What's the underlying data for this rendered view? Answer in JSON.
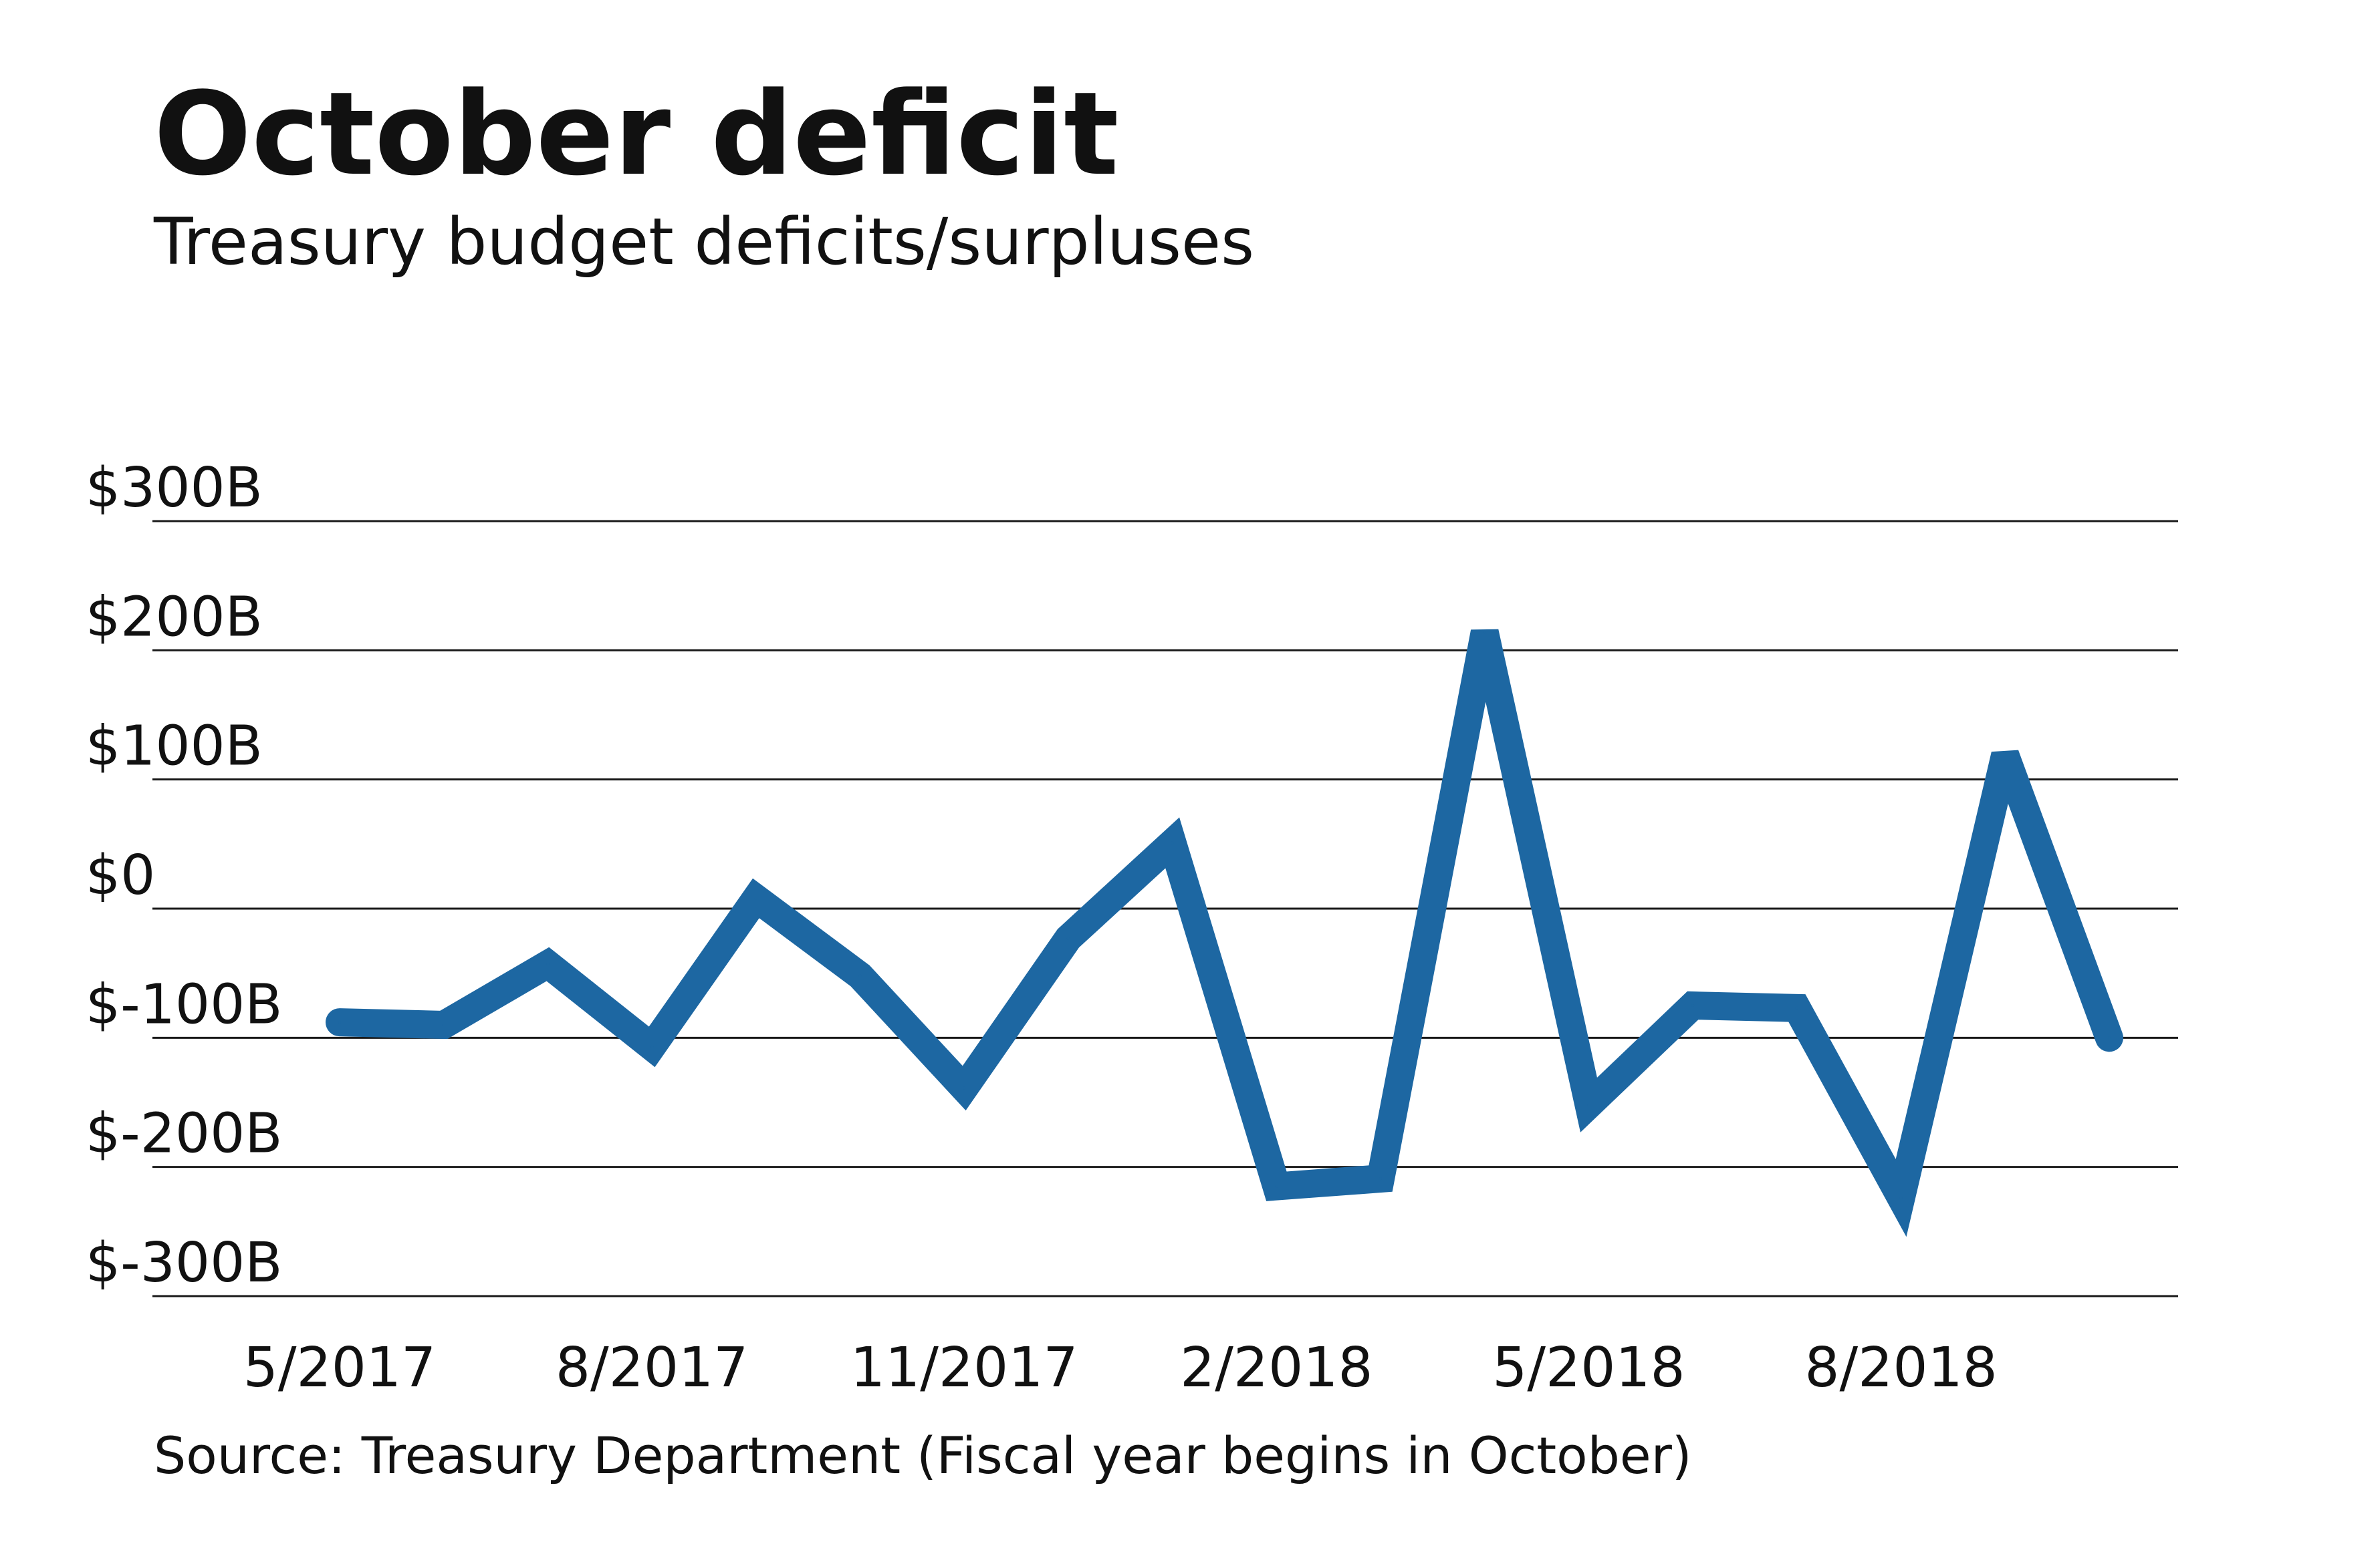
{
  "title": "October deficit",
  "subtitle": "Treasury budget deficits/surpluses",
  "source": "Source: Treasury Department (Fiscal year begins in October)",
  "chart_data": {
    "type": "line",
    "title": "October deficit",
    "subtitle": "Treasury budget deficits/surpluses",
    "xlabel": "",
    "ylabel": "",
    "ylim": [
      -300,
      300
    ],
    "yticks": [
      300,
      200,
      100,
      0,
      -100,
      -200,
      -300
    ],
    "ytick_labels": [
      "$300B",
      "$200B",
      "$100B",
      "$0",
      "$-100B",
      "$-200B",
      "$-300B"
    ],
    "xtick_labels": [
      "5/2017",
      "8/2017",
      "11/2017",
      "2/2018",
      "5/2018",
      "8/2018"
    ],
    "grid": true,
    "legend": "none",
    "line_color": "#1d67a2",
    "series": [
      {
        "values": [
          -88,
          -90,
          -43,
          -107,
          8,
          -52,
          -139,
          -23,
          51,
          -215,
          -209,
          214,
          -152,
          -75,
          -77,
          -224,
          119,
          -100
        ]
      }
    ]
  }
}
